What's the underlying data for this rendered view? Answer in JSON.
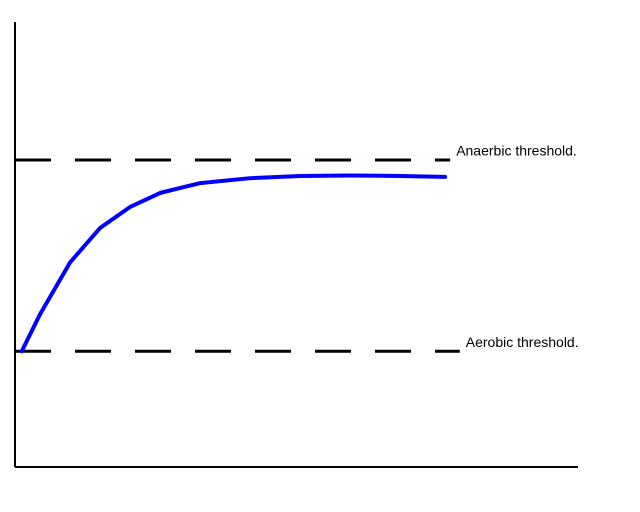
{
  "chart_data": {
    "type": "line",
    "xlim": [
      0,
      100
    ],
    "ylim": [
      0,
      100
    ],
    "x": [
      1.2,
      4.4,
      9.8,
      15.1,
      20.4,
      25.8,
      32.9,
      41.7,
      50.6,
      59.5,
      68.4,
      76.4
    ],
    "series": [
      {
        "color": "#0000ff",
        "values": [
          26,
          34.2,
          46,
          53.7,
          58.4,
          61.6,
          63.8,
          64.9,
          65.4,
          65.5,
          65.4,
          65.2
        ]
      }
    ],
    "thresholds": [
      {
        "label": "Anaerbic threshold.",
        "value": 69,
        "x_end": 77.3
      },
      {
        "label": "Aerobic threshold.",
        "value": 26,
        "x_end": 79
      }
    ]
  }
}
